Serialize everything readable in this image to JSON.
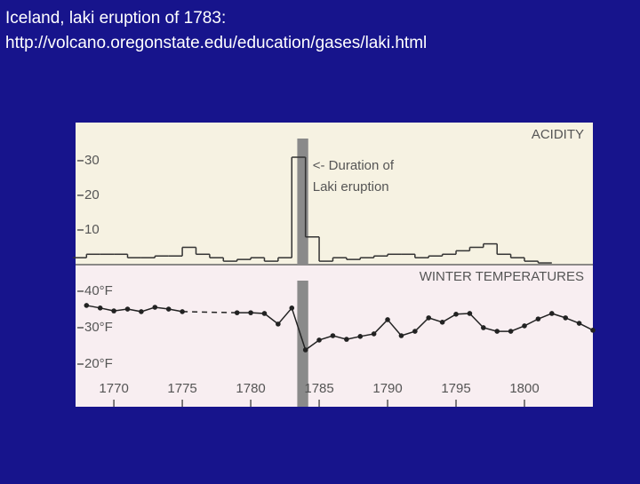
{
  "slide": {
    "title": [
      "Iceland, laki eruption of 1783:",
      "http://volcano.oregonstate.edu/education/gases/laki.html"
    ]
  },
  "chart_data": [
    {
      "type": "step",
      "title": "ACIDITY",
      "annotation": [
        "<- Duration of",
        "Laki eruption"
      ],
      "x": [
        1767,
        1768,
        1769,
        1770,
        1771,
        1772,
        1773,
        1774,
        1775,
        1776,
        1777,
        1778,
        1779,
        1780,
        1781,
        1782,
        1783,
        1784,
        1785,
        1786,
        1787,
        1788,
        1789,
        1790,
        1791,
        1792,
        1793,
        1794,
        1795,
        1796,
        1797,
        1798,
        1799,
        1800,
        1801
      ],
      "values": [
        2,
        3,
        3,
        3,
        2,
        2,
        2.5,
        2.5,
        5,
        3,
        2,
        1,
        1.5,
        2,
        1,
        2,
        31,
        8,
        1,
        2,
        1.5,
        2,
        2.5,
        3,
        3,
        2,
        2.5,
        3,
        4,
        5,
        6,
        3,
        2,
        1,
        0.5
      ],
      "color": "#333333",
      "highlight": [
        1783.4,
        1784.2
      ],
      "xlim": [
        1767.2,
        1805
      ],
      "ylim": [
        0,
        41
      ],
      "yticks": [
        10,
        20,
        30
      ]
    },
    {
      "type": "line",
      "title": "WINTER TEMPERATURES",
      "x": [
        1768,
        1769,
        1770,
        1771,
        1772,
        1773,
        1774,
        1775,
        1776,
        1777,
        1778,
        1779,
        1780,
        1781,
        1782,
        1783,
        1784,
        1785,
        1786,
        1787,
        1788,
        1789,
        1790,
        1791,
        1792,
        1793,
        1794,
        1795,
        1796,
        1797,
        1798,
        1799,
        1800,
        1801,
        1802,
        1803,
        1804,
        1805
      ],
      "values": [
        36.1,
        35.4,
        34.6,
        35.1,
        34.4,
        35.6,
        35.1,
        34.4,
        null,
        null,
        null,
        34.1,
        34.1,
        33.9,
        31.0,
        35.4,
        23.9,
        26.6,
        27.8,
        26.8,
        27.6,
        28.3,
        32.2,
        27.8,
        29.0,
        32.7,
        31.5,
        33.7,
        33.9,
        30.0,
        29.0,
        29.0,
        30.5,
        32.4,
        33.9,
        32.7,
        31.2,
        29.3
      ],
      "color": "#222222",
      "highlight": [
        1783.4,
        1784.2
      ],
      "xlim": [
        1767.2,
        1805
      ],
      "xticks": [
        1770,
        1775,
        1780,
        1785,
        1790,
        1795,
        1800
      ],
      "ylim": [
        8.3,
        47.3
      ],
      "yticks": [
        {
          "value": 40,
          "label": "40°F"
        },
        {
          "value": 30,
          "label": "30°F"
        },
        {
          "value": 20,
          "label": "20°F"
        }
      ]
    }
  ]
}
